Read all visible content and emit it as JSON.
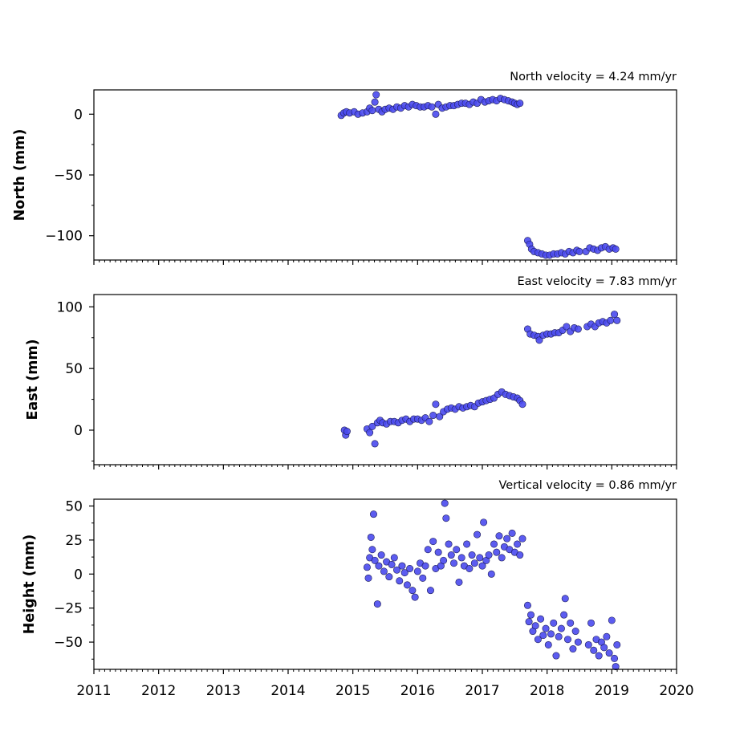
{
  "chart_data": [
    {
      "type": "scatter",
      "title": "North velocity = 4.24 mm/yr",
      "ylabel": "North (mm)",
      "xlim": [
        2011,
        2020
      ],
      "ylim": [
        -120,
        20
      ],
      "yticks": [
        0,
        -50,
        -100
      ],
      "ytick_labels": [
        "0",
        "−50",
        "−100"
      ],
      "marker_color": "#4a4aee",
      "marker_edge": "#1a1a55",
      "series": [
        {
          "points": [
            [
              2014.82,
              -1
            ],
            [
              2014.86,
              1
            ],
            [
              2014.9,
              2
            ],
            [
              2014.95,
              1
            ],
            [
              2015.02,
              2
            ],
            [
              2015.08,
              0
            ],
            [
              2015.15,
              1
            ],
            [
              2015.22,
              2
            ],
            [
              2015.26,
              5
            ],
            [
              2015.3,
              3
            ],
            [
              2015.34,
              10
            ],
            [
              2015.36,
              16
            ],
            [
              2015.4,
              4
            ],
            [
              2015.45,
              2
            ],
            [
              2015.5,
              4
            ],
            [
              2015.56,
              5
            ],
            [
              2015.62,
              4
            ],
            [
              2015.68,
              6
            ],
            [
              2015.74,
              5
            ],
            [
              2015.8,
              7
            ],
            [
              2015.86,
              6
            ],
            [
              2015.92,
              8
            ],
            [
              2015.98,
              7
            ],
            [
              2016.04,
              6
            ],
            [
              2016.1,
              6
            ],
            [
              2016.16,
              7
            ],
            [
              2016.22,
              6
            ],
            [
              2016.28,
              0
            ],
            [
              2016.32,
              8
            ],
            [
              2016.38,
              5
            ],
            [
              2016.44,
              6
            ],
            [
              2016.5,
              7
            ],
            [
              2016.56,
              7
            ],
            [
              2016.62,
              8
            ],
            [
              2016.68,
              9
            ],
            [
              2016.74,
              9
            ],
            [
              2016.8,
              8
            ],
            [
              2016.86,
              10
            ],
            [
              2016.92,
              9
            ],
            [
              2016.98,
              12
            ],
            [
              2017.04,
              10
            ],
            [
              2017.1,
              11
            ],
            [
              2017.16,
              12
            ],
            [
              2017.22,
              11
            ],
            [
              2017.28,
              13
            ],
            [
              2017.34,
              12
            ],
            [
              2017.4,
              11
            ],
            [
              2017.46,
              10
            ],
            [
              2017.5,
              9
            ],
            [
              2017.54,
              8
            ],
            [
              2017.58,
              9
            ],
            [
              2017.7,
              -104
            ],
            [
              2017.73,
              -107
            ],
            [
              2017.76,
              -111
            ],
            [
              2017.8,
              -113
            ],
            [
              2017.86,
              -114
            ],
            [
              2017.92,
              -115
            ],
            [
              2017.98,
              -116
            ],
            [
              2018.04,
              -116
            ],
            [
              2018.1,
              -115
            ],
            [
              2018.16,
              -115
            ],
            [
              2018.22,
              -114
            ],
            [
              2018.28,
              -115
            ],
            [
              2018.34,
              -113
            ],
            [
              2018.4,
              -114
            ],
            [
              2018.46,
              -112
            ],
            [
              2018.5,
              -113
            ],
            [
              2018.6,
              -113
            ],
            [
              2018.66,
              -110
            ],
            [
              2018.72,
              -111
            ],
            [
              2018.78,
              -112
            ],
            [
              2018.84,
              -110
            ],
            [
              2018.9,
              -109
            ],
            [
              2018.96,
              -111
            ],
            [
              2019.02,
              -110
            ],
            [
              2019.06,
              -111
            ]
          ]
        }
      ]
    },
    {
      "type": "scatter",
      "title": "East velocity = 7.83 mm/yr",
      "ylabel": "East (mm)",
      "xlim": [
        2011,
        2020
      ],
      "ylim": [
        -28,
        110
      ],
      "yticks": [
        100,
        50,
        0
      ],
      "ytick_labels": [
        "100",
        "50",
        "0"
      ],
      "marker_color": "#4a4aee",
      "marker_edge": "#1a1a55",
      "series": [
        {
          "points": [
            [
              2014.87,
              0
            ],
            [
              2014.89,
              -4
            ],
            [
              2014.91,
              -1
            ],
            [
              2015.22,
              1
            ],
            [
              2015.26,
              -2
            ],
            [
              2015.3,
              3
            ],
            [
              2015.34,
              -11
            ],
            [
              2015.38,
              6
            ],
            [
              2015.42,
              8
            ],
            [
              2015.46,
              6
            ],
            [
              2015.52,
              5
            ],
            [
              2015.58,
              7
            ],
            [
              2015.64,
              7
            ],
            [
              2015.7,
              6
            ],
            [
              2015.76,
              8
            ],
            [
              2015.82,
              9
            ],
            [
              2015.88,
              7
            ],
            [
              2015.94,
              9
            ],
            [
              2016.0,
              9
            ],
            [
              2016.06,
              8
            ],
            [
              2016.12,
              10
            ],
            [
              2016.18,
              7
            ],
            [
              2016.24,
              12
            ],
            [
              2016.28,
              21
            ],
            [
              2016.34,
              11
            ],
            [
              2016.4,
              15
            ],
            [
              2016.46,
              17
            ],
            [
              2016.52,
              18
            ],
            [
              2016.58,
              17
            ],
            [
              2016.64,
              19
            ],
            [
              2016.7,
              18
            ],
            [
              2016.76,
              19
            ],
            [
              2016.82,
              20
            ],
            [
              2016.88,
              19
            ],
            [
              2016.94,
              22
            ],
            [
              2017.0,
              23
            ],
            [
              2017.06,
              24
            ],
            [
              2017.12,
              25
            ],
            [
              2017.18,
              26
            ],
            [
              2017.24,
              29
            ],
            [
              2017.3,
              31
            ],
            [
              2017.36,
              29
            ],
            [
              2017.42,
              28
            ],
            [
              2017.48,
              27
            ],
            [
              2017.54,
              26
            ],
            [
              2017.58,
              24
            ],
            [
              2017.62,
              21
            ],
            [
              2017.7,
              82
            ],
            [
              2017.74,
              78
            ],
            [
              2017.8,
              77
            ],
            [
              2017.86,
              76
            ],
            [
              2017.88,
              73
            ],
            [
              2017.94,
              77
            ],
            [
              2018.0,
              78
            ],
            [
              2018.06,
              78
            ],
            [
              2018.12,
              79
            ],
            [
              2018.18,
              79
            ],
            [
              2018.24,
              81
            ],
            [
              2018.3,
              84
            ],
            [
              2018.36,
              80
            ],
            [
              2018.42,
              83
            ],
            [
              2018.48,
              82
            ],
            [
              2018.62,
              84
            ],
            [
              2018.68,
              86
            ],
            [
              2018.74,
              84
            ],
            [
              2018.8,
              87
            ],
            [
              2018.86,
              88
            ],
            [
              2018.92,
              87
            ],
            [
              2018.98,
              89
            ],
            [
              2019.04,
              94
            ],
            [
              2019.08,
              89
            ]
          ]
        }
      ]
    },
    {
      "type": "scatter",
      "title": "Vertical velocity = 0.86 mm/yr",
      "ylabel": "Height (mm)",
      "xlim": [
        2011,
        2020
      ],
      "ylim": [
        -70,
        55
      ],
      "yticks": [
        50,
        25,
        0,
        -25,
        -50
      ],
      "ytick_labels": [
        "50",
        "25",
        "0",
        "−25",
        "−50"
      ],
      "marker_color": "#4a4aee",
      "marker_edge": "#1a1a55",
      "series": [
        {
          "points": [
            [
              2015.22,
              5
            ],
            [
              2015.24,
              -3
            ],
            [
              2015.26,
              12
            ],
            [
              2015.28,
              27
            ],
            [
              2015.3,
              18
            ],
            [
              2015.32,
              44
            ],
            [
              2015.34,
              10
            ],
            [
              2015.38,
              -22
            ],
            [
              2015.4,
              6
            ],
            [
              2015.44,
              14
            ],
            [
              2015.48,
              2
            ],
            [
              2015.52,
              9
            ],
            [
              2015.56,
              -2
            ],
            [
              2015.6,
              7
            ],
            [
              2015.64,
              12
            ],
            [
              2015.68,
              3
            ],
            [
              2015.72,
              -5
            ],
            [
              2015.76,
              6
            ],
            [
              2015.8,
              1
            ],
            [
              2015.84,
              -8
            ],
            [
              2015.88,
              4
            ],
            [
              2015.92,
              -12
            ],
            [
              2015.96,
              -17
            ],
            [
              2016.0,
              2
            ],
            [
              2016.04,
              8
            ],
            [
              2016.08,
              -3
            ],
            [
              2016.12,
              6
            ],
            [
              2016.16,
              18
            ],
            [
              2016.2,
              -12
            ],
            [
              2016.24,
              24
            ],
            [
              2016.28,
              4
            ],
            [
              2016.32,
              16
            ],
            [
              2016.36,
              6
            ],
            [
              2016.4,
              10
            ],
            [
              2016.42,
              52
            ],
            [
              2016.44,
              41
            ],
            [
              2016.48,
              22
            ],
            [
              2016.52,
              14
            ],
            [
              2016.56,
              8
            ],
            [
              2016.6,
              18
            ],
            [
              2016.64,
              -6
            ],
            [
              2016.68,
              12
            ],
            [
              2016.72,
              6
            ],
            [
              2016.76,
              22
            ],
            [
              2016.8,
              4
            ],
            [
              2016.84,
              14
            ],
            [
              2016.88,
              8
            ],
            [
              2016.92,
              29
            ],
            [
              2016.96,
              12
            ],
            [
              2017.0,
              6
            ],
            [
              2017.02,
              38
            ],
            [
              2017.06,
              10
            ],
            [
              2017.1,
              14
            ],
            [
              2017.14,
              0
            ],
            [
              2017.18,
              22
            ],
            [
              2017.22,
              16
            ],
            [
              2017.26,
              28
            ],
            [
              2017.3,
              12
            ],
            [
              2017.34,
              20
            ],
            [
              2017.38,
              26
            ],
            [
              2017.42,
              18
            ],
            [
              2017.46,
              30
            ],
            [
              2017.5,
              16
            ],
            [
              2017.54,
              22
            ],
            [
              2017.58,
              14
            ],
            [
              2017.62,
              26
            ],
            [
              2017.7,
              -23
            ],
            [
              2017.72,
              -35
            ],
            [
              2017.75,
              -30
            ],
            [
              2017.78,
              -42
            ],
            [
              2017.82,
              -38
            ],
            [
              2017.86,
              -48
            ],
            [
              2017.9,
              -33
            ],
            [
              2017.94,
              -45
            ],
            [
              2017.98,
              -40
            ],
            [
              2018.02,
              -52
            ],
            [
              2018.06,
              -44
            ],
            [
              2018.1,
              -36
            ],
            [
              2018.14,
              -60
            ],
            [
              2018.18,
              -46
            ],
            [
              2018.22,
              -40
            ],
            [
              2018.26,
              -30
            ],
            [
              2018.28,
              -18
            ],
            [
              2018.32,
              -48
            ],
            [
              2018.36,
              -36
            ],
            [
              2018.4,
              -55
            ],
            [
              2018.44,
              -42
            ],
            [
              2018.48,
              -50
            ],
            [
              2018.64,
              -52
            ],
            [
              2018.68,
              -36
            ],
            [
              2018.72,
              -56
            ],
            [
              2018.76,
              -48
            ],
            [
              2018.8,
              -60
            ],
            [
              2018.84,
              -50
            ],
            [
              2018.88,
              -54
            ],
            [
              2018.92,
              -46
            ],
            [
              2018.96,
              -58
            ],
            [
              2019.0,
              -34
            ],
            [
              2019.04,
              -62
            ],
            [
              2019.06,
              -68
            ],
            [
              2019.08,
              -52
            ]
          ]
        }
      ]
    }
  ],
  "xticks": [
    2011,
    2012,
    2013,
    2014,
    2015,
    2016,
    2017,
    2018,
    2019,
    2020
  ],
  "xtick_labels": [
    "2011",
    "2012",
    "2013",
    "2014",
    "2015",
    "2016",
    "2017",
    "2018",
    "2019",
    "2020"
  ]
}
